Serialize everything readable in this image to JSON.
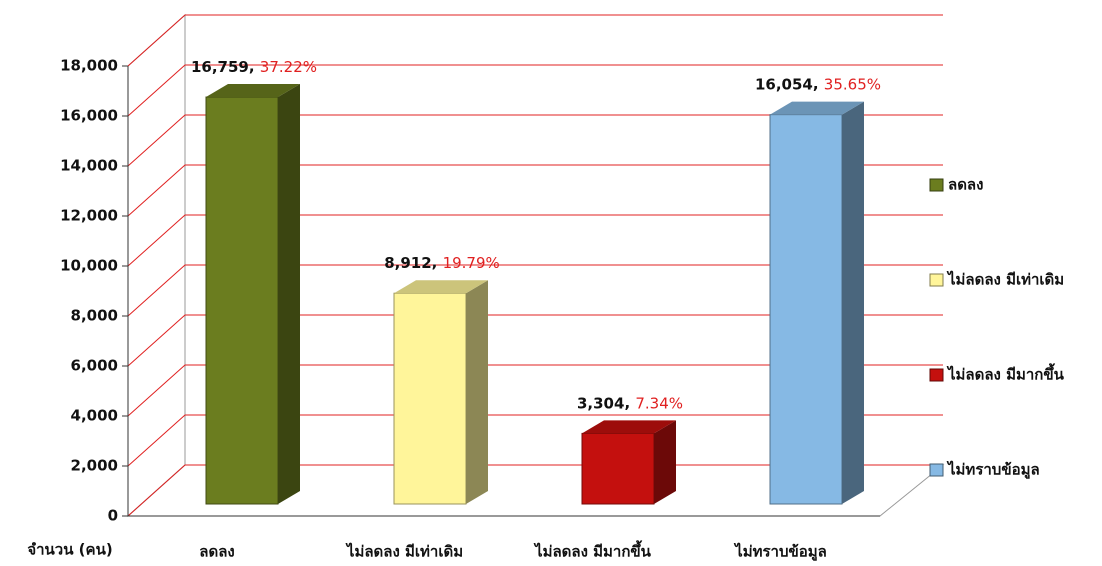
{
  "chart_data": {
    "type": "bar3d",
    "y_label": "จำนวน (คน)",
    "categories": [
      "ลดลง",
      "ไม่ลดลง มีเท่าเดิม",
      "ไม่ลดลง มีมากขึ้น",
      "ไม่ทราบข้อมูล"
    ],
    "values": [
      16759,
      8912,
      3304,
      16054
    ],
    "value_labels": [
      "16,759",
      "8,912",
      "3,304",
      "16,054"
    ],
    "percent_labels": [
      "37.22%",
      "19.79%",
      "7.34%",
      "35.65%"
    ],
    "colors": [
      "#6b7d1f",
      "#fff59a",
      "#c4100e",
      "#86b9e4"
    ],
    "ylim": [
      0,
      18000
    ],
    "yticks": [
      0,
      {
        "value": 2000,
        "label": "2,000"
      },
      {
        "value": 4000,
        "label": "4,000"
      },
      {
        "value": 6000,
        "label": "6,000"
      },
      {
        "value": 8000,
        "label": "8,000"
      },
      {
        "value": 10000,
        "label": "10,000"
      },
      {
        "value": 12000,
        "label": "12,000"
      },
      {
        "value": 14000,
        "label": "14,000"
      },
      {
        "value": 16000,
        "label": "16,000"
      },
      {
        "value": 18000,
        "label": "18,000"
      }
    ],
    "grid": true,
    "grid_color": "#e02020",
    "legend": "right"
  }
}
